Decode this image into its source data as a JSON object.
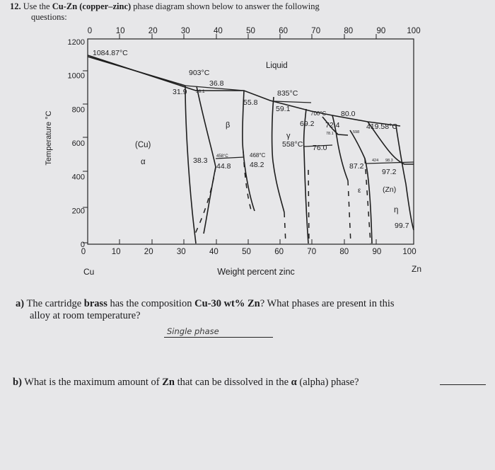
{
  "question": {
    "number": "12.",
    "text_pre": "Use the",
    "bold1": "Cu-Zn (copper–zinc)",
    "text_post": "phase diagram shown below to answer the following",
    "text_line2": "questions:"
  },
  "chart_data": {
    "type": "phase-diagram",
    "xlabel": "Weight percent zinc",
    "ylabel": "Temperature °C",
    "xlim": [
      0,
      100
    ],
    "ylim": [
      0,
      1200
    ],
    "top_ticks": [
      "0",
      "10",
      "20",
      "30",
      "40",
      "50",
      "60",
      "70",
      "80",
      "90",
      "100"
    ],
    "bottom_ticks": [
      "0",
      "10",
      "20",
      "30",
      "40",
      "50",
      "60",
      "70",
      "80",
      "90",
      "100"
    ],
    "y_ticks": [
      "1200",
      "1000",
      "800",
      "600",
      "400",
      "200",
      "0"
    ],
    "end_labels": {
      "left": "Cu",
      "right": "Zn"
    },
    "phase_labels": [
      "Liquid",
      "(Cu)",
      "α",
      "β",
      "γ",
      "ε",
      "η",
      "(Zn)"
    ],
    "annotations": [
      "1084.87°C",
      "903°C",
      "36.8",
      "31.9",
      "36.1",
      "835°C",
      "55.8",
      "59.1",
      "700°C",
      "80.0",
      "69.2",
      "72.4",
      "78.1",
      "598",
      "419.58°C",
      "558°C",
      "76.0",
      "458°C",
      "468°C",
      "44.8",
      "48.2",
      "38.3",
      "87.2",
      "424",
      "98.3",
      "97.2",
      "99.7"
    ]
  },
  "part_a": {
    "label": "a)",
    "text1": "The cartridge",
    "bold1": "brass",
    "text2": "has the composition",
    "bold2": "Cu-30 wt% Zn",
    "text3": "? What phases are present in this",
    "text_line2": "alloy at room temperature?",
    "answer": "Single phase"
  },
  "part_b": {
    "label": "b)",
    "text1": "What is the maximum amount of",
    "bold1": "Zn",
    "text2": "that can be dissolved in the",
    "alpha": "α",
    "text3": "(alpha) phase?"
  }
}
